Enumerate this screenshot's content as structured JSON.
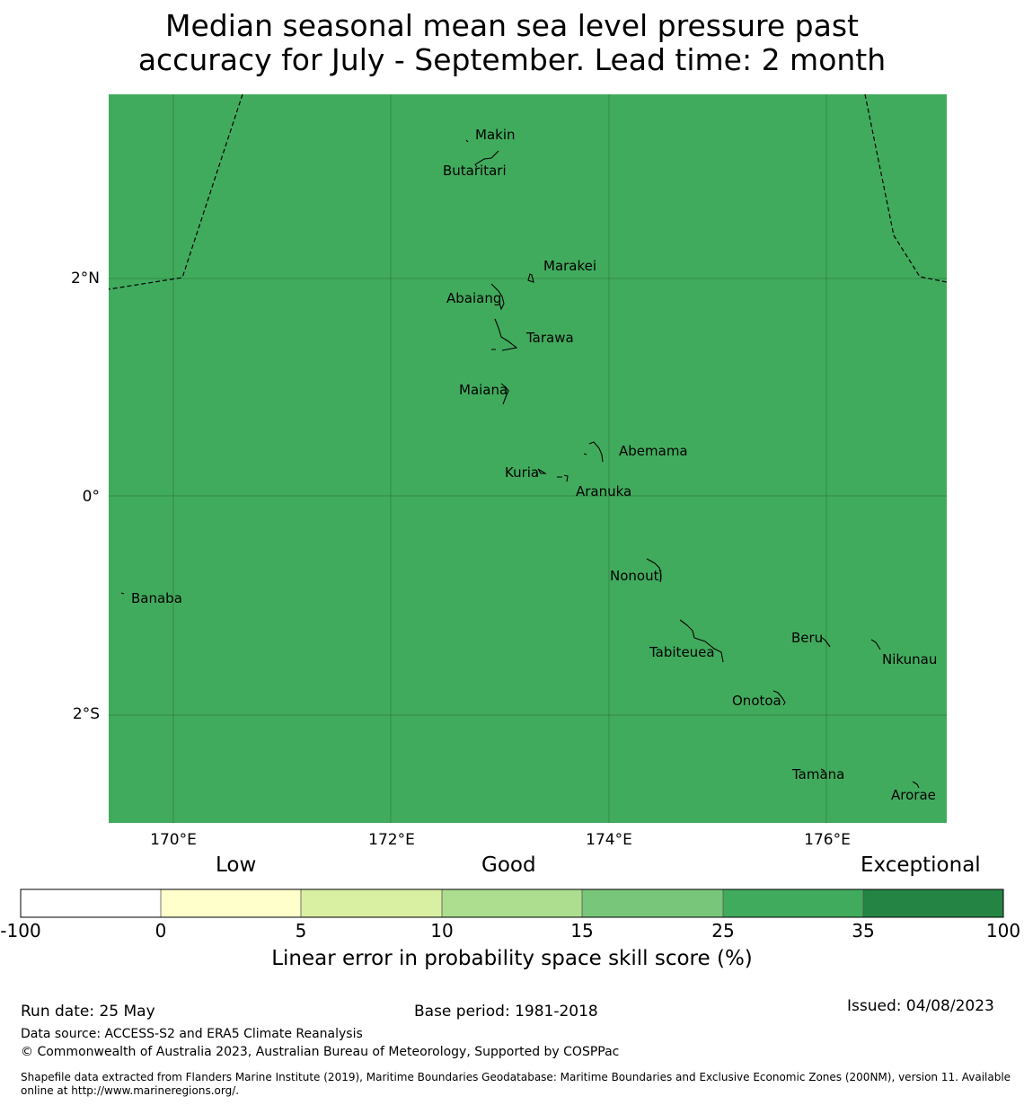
{
  "title_line1": "Median seasonal mean sea level pressure past",
  "title_line2": "accuracy for July - September. Lead time: 2 month",
  "map": {
    "fill_color": "#41ab5d",
    "lat_labels": [
      "2°N",
      "0°",
      "2°S"
    ],
    "lon_labels": [
      "170°E",
      "172°E",
      "174°E",
      "176°E"
    ],
    "islands": [
      "Makin",
      "Butaritari",
      "Marakei",
      "Abaiang",
      "Tarawa",
      "Maiana",
      "Abemama",
      "Kuria",
      "Aranuka",
      "Nonouti",
      "Banaba",
      "Beru",
      "Tabiteuea",
      "Nikunau",
      "Onotoa",
      "Tamana",
      "Arorae"
    ]
  },
  "colorbar": {
    "category_labels": {
      "low": "Low",
      "good": "Good",
      "exceptional": "Exceptional"
    },
    "ticks": [
      "-100",
      "0",
      "5",
      "10",
      "15",
      "25",
      "35",
      "100"
    ],
    "colors": [
      "#ffffff",
      "#ffffcc",
      "#d9f0a3",
      "#addd8e",
      "#78c679",
      "#41ab5d",
      "#238443"
    ],
    "label": "Linear error in probability space skill score (%)"
  },
  "footer": {
    "run_date": "Run date: 25 May",
    "base_period": "Base period: 1981-2018",
    "issued": "Issued: 04/08/2023",
    "data_source": "Data source: ACCESS-S2 and ERA5 Climate Reanalysis",
    "copyright": "© Commonwealth of Australia 2023, Australian Bureau of Meteorology, Supported by COSPPac",
    "shapefile_line1": "Shapefile data extracted from Flanders Marine Institute (2019), Maritime Boundaries Geodatabase: Maritime Boundaries and Exclusive Economic Zones (200NM), version 11. Available",
    "shapefile_line2": "online at http://www.marineregions.org/."
  }
}
